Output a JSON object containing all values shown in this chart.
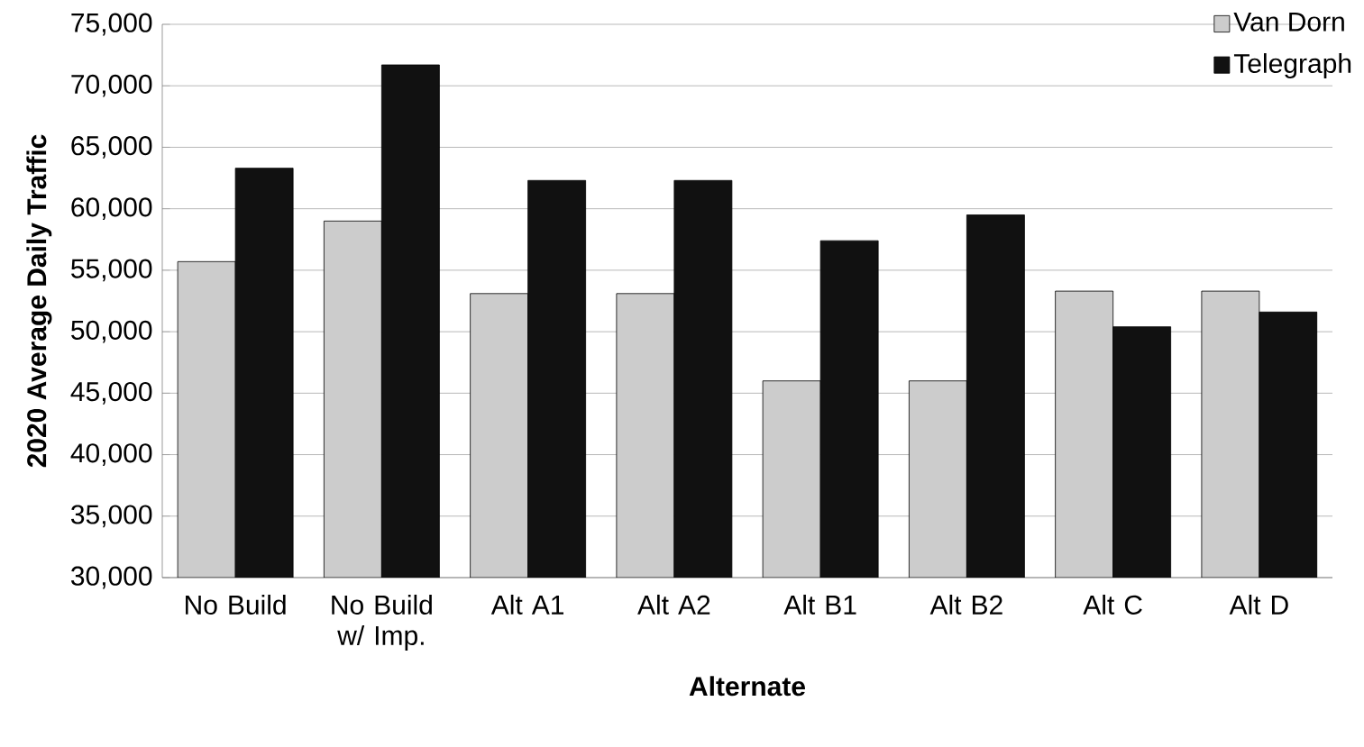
{
  "chart_data": {
    "type": "bar",
    "xlabel": "Alternate",
    "ylabel": "2020 Average Daily Traffic",
    "categories": [
      "No Build",
      "No Build w/ Imp.",
      "Alt A1",
      "Alt A2",
      "Alt B1",
      "Alt B2",
      "Alt C",
      "Alt D"
    ],
    "series": [
      {
        "name": "Van Dorn",
        "color": "#cccccc",
        "values": [
          55700,
          59000,
          53100,
          53100,
          46000,
          46000,
          53300,
          53300
        ]
      },
      {
        "name": "Telegraph",
        "color": "#111111",
        "values": [
          63300,
          71700,
          62300,
          62300,
          57400,
          59500,
          50400,
          51600
        ]
      }
    ],
    "ylim": [
      30000,
      75000
    ],
    "yticks": [
      {
        "value": 30000,
        "label": "30,000"
      },
      {
        "value": 35000,
        "label": "35,000"
      },
      {
        "value": 40000,
        "label": "40,000"
      },
      {
        "value": 45000,
        "label": "45,000"
      },
      {
        "value": 50000,
        "label": "50,000"
      },
      {
        "value": 55000,
        "label": "55,000"
      },
      {
        "value": 60000,
        "label": "60,000"
      },
      {
        "value": 65000,
        "label": "65,000"
      },
      {
        "value": 70000,
        "label": "70,000"
      },
      {
        "value": 75000,
        "label": "75,000"
      }
    ],
    "grid": "y",
    "legend": "top right"
  }
}
